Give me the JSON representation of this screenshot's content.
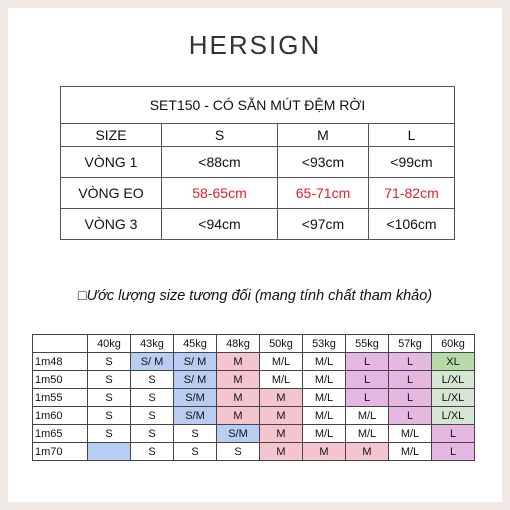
{
  "brand": "HERSIGN",
  "size_table": {
    "title": "SET150 - CÓ SẴN MÚT ĐỆM RỜI",
    "header": [
      "SIZE",
      "S",
      "M",
      "L"
    ],
    "rows": [
      [
        "VÒNG 1",
        "<88cm",
        "<93cm",
        "<99cm"
      ],
      [
        "VÒNG EO",
        "58-65cm",
        "65-71cm",
        "71-82cm"
      ],
      [
        "VÒNG 3",
        "<94cm",
        "<97cm",
        "<106cm"
      ]
    ]
  },
  "estimate_heading": "□Ước lượng size tương đối (mang tính chất tham khảo)",
  "estimate_table": {
    "header": [
      "40kg",
      "43kg",
      "45kg",
      "48kg",
      "50kg",
      "53kg",
      "55kg",
      "57kg",
      "60kg"
    ],
    "rows": [
      {
        "height": "1m48",
        "sizes": [
          "S",
          "S/ M",
          "S/ M",
          "M",
          "M/L",
          "M/L",
          "L",
          "L",
          "XL"
        ]
      },
      {
        "height": "1m50",
        "sizes": [
          "S",
          "S",
          "S/ M",
          "M",
          "M/L",
          "M/L",
          "L",
          "L",
          "L/XL"
        ]
      },
      {
        "height": "1m55",
        "sizes": [
          "S",
          "S",
          "S/M",
          "M",
          "M",
          "M/L",
          "L",
          "L",
          "L/XL"
        ]
      },
      {
        "height": "1m60",
        "sizes": [
          "S",
          "S",
          "S/M",
          "M",
          "M",
          "M/L",
          "M/L",
          "L",
          "L/XL"
        ]
      },
      {
        "height": "1m65",
        "sizes": [
          "S",
          "S",
          "S",
          "S/M",
          "M",
          "M/L",
          "M/L",
          "M/L",
          "L"
        ]
      },
      {
        "height": "1m70",
        "sizes": [
          null,
          "S",
          "S",
          "S",
          "M",
          "M",
          "M",
          "M/L",
          "L"
        ]
      }
    ]
  }
}
